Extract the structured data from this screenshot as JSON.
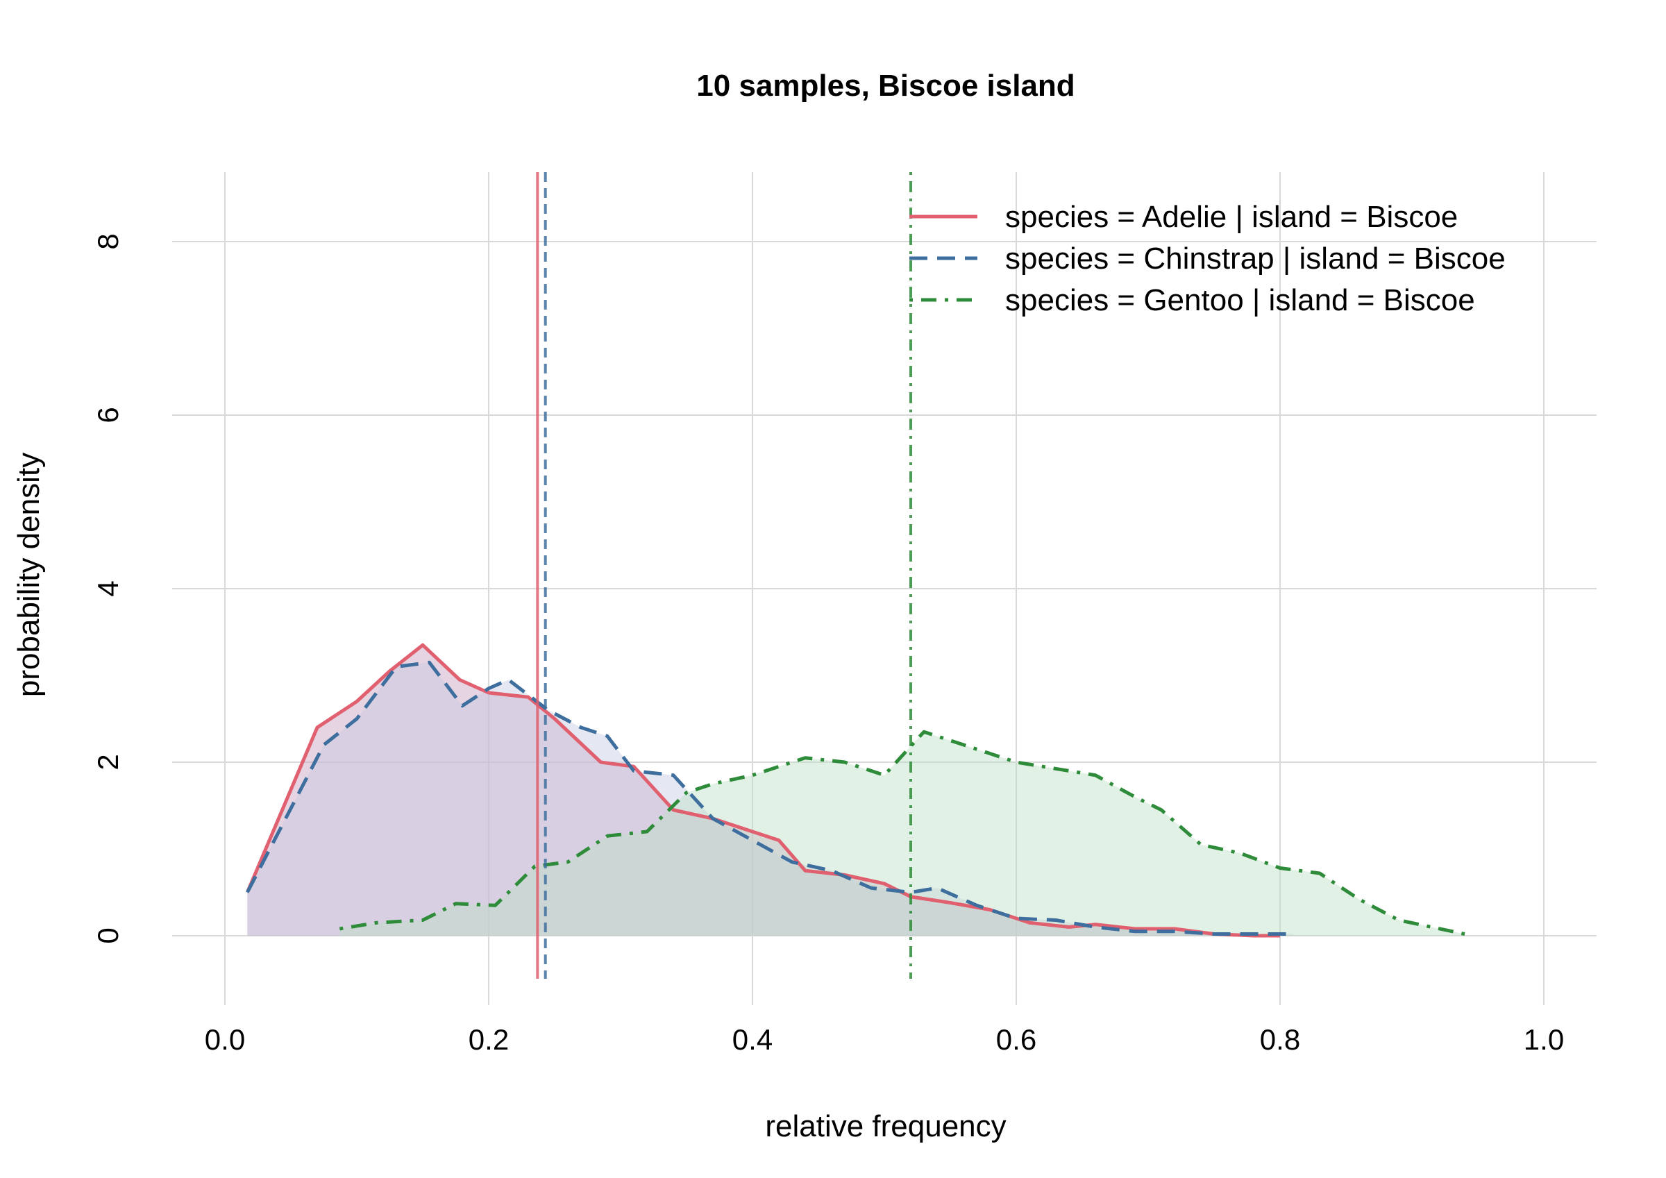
{
  "chart_data": {
    "type": "area",
    "title": "10 samples, Biscoe island",
    "xlabel": "relative frequency",
    "ylabel": "probability density",
    "xlim": [
      -0.04,
      1.04
    ],
    "ylim": [
      -0.8,
      8.8
    ],
    "xticks": [
      0.0,
      0.2,
      0.4,
      0.6,
      0.8,
      1.0
    ],
    "xtick_labels": [
      "0.0",
      "0.2",
      "0.4",
      "0.6",
      "0.8",
      "1.0"
    ],
    "yticks": [
      0,
      2,
      4,
      6,
      8
    ],
    "ytick_labels": [
      "0",
      "2",
      "4",
      "6",
      "8"
    ],
    "grid": true,
    "legend_position": "top-right",
    "series": [
      {
        "name": "species = Adelie | island = Biscoe",
        "color": "#E06070",
        "fill": "#C9A0BE",
        "dash": "solid",
        "vline": 0.237,
        "x": [
          0.017,
          0.07,
          0.1,
          0.125,
          0.15,
          0.178,
          0.2,
          0.23,
          0.25,
          0.285,
          0.31,
          0.34,
          0.37,
          0.39,
          0.42,
          0.44,
          0.47,
          0.5,
          0.52,
          0.55,
          0.58,
          0.61,
          0.64,
          0.66,
          0.69,
          0.72,
          0.75,
          0.78,
          0.8
        ],
        "y": [
          0.5,
          2.4,
          2.7,
          3.05,
          3.35,
          2.95,
          2.8,
          2.75,
          2.5,
          2.0,
          1.95,
          1.45,
          1.35,
          1.25,
          1.1,
          0.75,
          0.7,
          0.6,
          0.45,
          0.38,
          0.3,
          0.15,
          0.1,
          0.13,
          0.08,
          0.08,
          0.02,
          0.0,
          0.0
        ]
      },
      {
        "name": "species = Chinstrap | island = Biscoe",
        "color": "#3D6E9E",
        "fill": "#C5CCE2",
        "dash": "dashed",
        "vline": 0.243,
        "x": [
          0.017,
          0.075,
          0.1,
          0.13,
          0.155,
          0.18,
          0.2,
          0.215,
          0.245,
          0.27,
          0.29,
          0.31,
          0.34,
          0.37,
          0.4,
          0.43,
          0.46,
          0.49,
          0.52,
          0.54,
          0.57,
          0.6,
          0.63,
          0.66,
          0.69,
          0.72,
          0.75,
          0.78,
          0.81
        ],
        "y": [
          0.5,
          2.2,
          2.5,
          3.1,
          3.15,
          2.65,
          2.85,
          2.95,
          2.6,
          2.4,
          2.3,
          1.9,
          1.85,
          1.35,
          1.1,
          0.85,
          0.75,
          0.55,
          0.5,
          0.55,
          0.35,
          0.2,
          0.18,
          0.1,
          0.05,
          0.05,
          0.02,
          0.02,
          0.02
        ]
      },
      {
        "name": "species = Gentoo | island = Biscoe",
        "color": "#2E8B3A",
        "fill": "#BFE0C5",
        "dash": "dotdash",
        "vline": 0.52,
        "x": [
          0.087,
          0.115,
          0.15,
          0.175,
          0.205,
          0.235,
          0.26,
          0.29,
          0.32,
          0.35,
          0.37,
          0.4,
          0.44,
          0.47,
          0.5,
          0.53,
          0.57,
          0.6,
          0.64,
          0.66,
          0.69,
          0.71,
          0.74,
          0.77,
          0.8,
          0.83,
          0.86,
          0.89,
          0.94
        ],
        "y": [
          0.08,
          0.15,
          0.18,
          0.37,
          0.35,
          0.8,
          0.85,
          1.15,
          1.2,
          1.65,
          1.75,
          1.85,
          2.05,
          2.0,
          1.85,
          2.35,
          2.15,
          2.0,
          1.9,
          1.85,
          1.6,
          1.45,
          1.05,
          0.95,
          0.78,
          0.72,
          0.42,
          0.18,
          0.02
        ]
      }
    ]
  }
}
